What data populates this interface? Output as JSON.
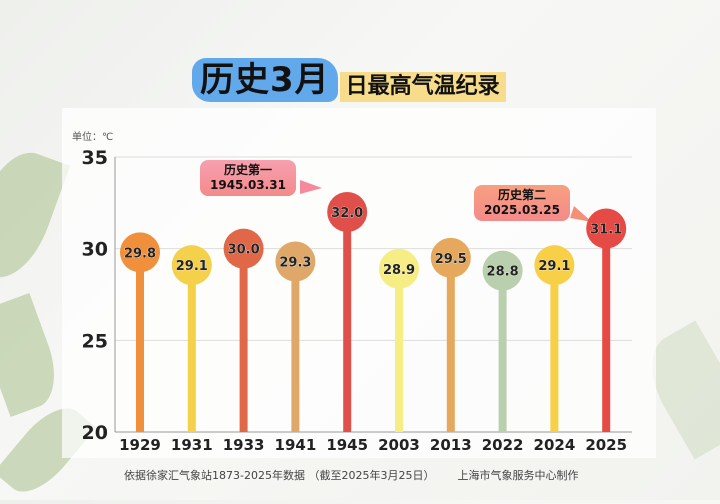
{
  "title": {
    "highlight": "历史3月",
    "rest": "日最高气温纪录"
  },
  "unit_label": "单位：℃",
  "footer": {
    "source": "依据徐家汇气象站1873-2025年数据 （截至2025年3月25日）",
    "credit": "上海市气象服务中心制作"
  },
  "callouts": [
    {
      "rank": "历史第一",
      "date": "1945.03.31",
      "color": "#f7a0b0"
    },
    {
      "rank": "历史第二",
      "date": "2025.03.25",
      "color": "#f7a080"
    }
  ],
  "chart_data": {
    "type": "lollipop",
    "title": "历史3月日最高气温纪录",
    "ylabel": "单位：℃",
    "ylim": [
      20,
      35
    ],
    "yticks": [
      20,
      25,
      30,
      35
    ],
    "grid": true,
    "categories": [
      "1929",
      "1931",
      "1933",
      "1941",
      "1945",
      "2003",
      "2013",
      "2022",
      "2024",
      "2025"
    ],
    "values": [
      29.8,
      29.1,
      30.0,
      29.3,
      32.0,
      28.9,
      29.5,
      28.8,
      29.1,
      31.1
    ],
    "labels": [
      "29.8",
      "29.1",
      "30.0",
      "29.3",
      "32.0",
      "28.9",
      "29.5",
      "28.8",
      "29.1",
      "31.1"
    ],
    "colors": [
      "#f0903c",
      "#f5d04a",
      "#e06848",
      "#e0a868",
      "#e0504a",
      "#f6ee84",
      "#e6a85c",
      "#b9cfae",
      "#f7d048",
      "#e64a44"
    ]
  }
}
